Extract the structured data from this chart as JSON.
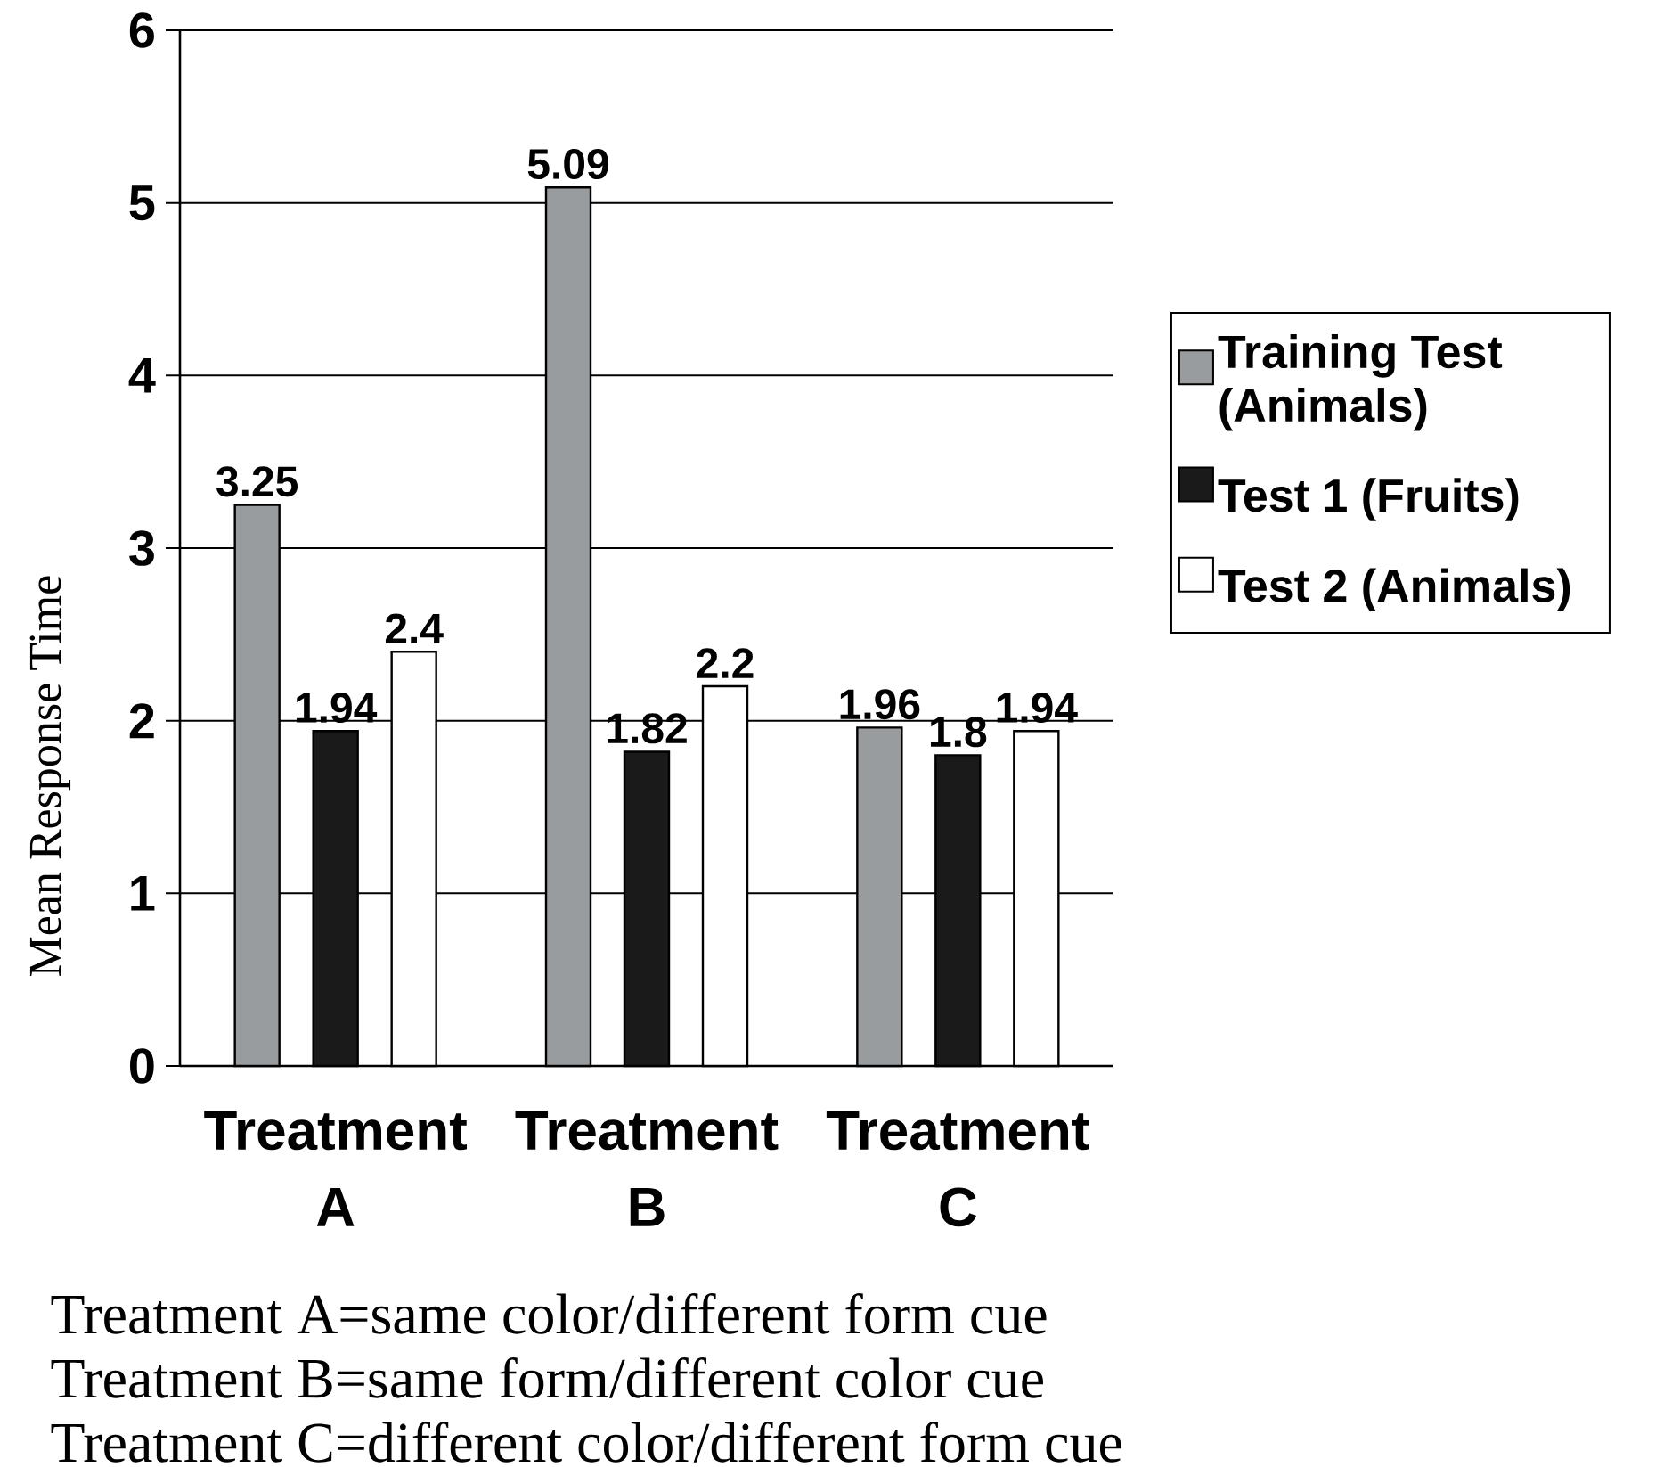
{
  "chart_data": {
    "type": "bar",
    "ylabel": "Mean Response Time",
    "categories": [
      "Treatment A",
      "Treatment B",
      "Treatment C"
    ],
    "series": [
      {
        "name": "Training Test (Animals)",
        "color": "#989c9f",
        "values": [
          3.25,
          5.09,
          1.96
        ]
      },
      {
        "name": "Test 1 (Fruits)",
        "color": "#1a1a1a",
        "values": [
          1.94,
          1.82,
          1.8
        ]
      },
      {
        "name": "Test 2 (Animals)",
        "color": "#ffffff",
        "values": [
          2.4,
          2.2,
          1.94
        ]
      }
    ],
    "ylim": [
      0,
      6
    ],
    "yticks": [
      0,
      1,
      2,
      3,
      4,
      5,
      6
    ],
    "grid": "y",
    "legend": "right",
    "data_labels": true,
    "annotations": [
      "Treatment A=same color/different form cue",
      "Treatment B=same form/different color cue",
      "Treatment C=different color/different form cue"
    ]
  }
}
